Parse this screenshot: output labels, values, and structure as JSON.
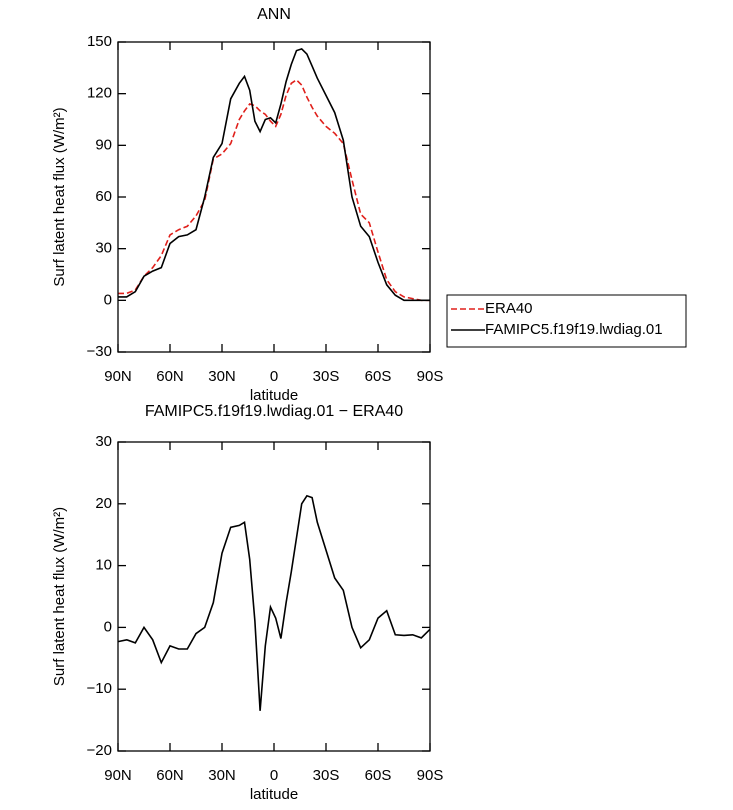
{
  "chart_data": [
    {
      "type": "line",
      "title": "ANN",
      "x_label": "latitude",
      "y_label": "Surf latent heat flux (W/m²)",
      "x": [
        90,
        85,
        80,
        75,
        70,
        65,
        60,
        55,
        50,
        45,
        40,
        35,
        30,
        25,
        20,
        17,
        14,
        11,
        8,
        5,
        2,
        -1,
        -4,
        -7,
        -10,
        -13,
        -16,
        -19,
        -22,
        -25,
        -30,
        -35,
        -40,
        -45,
        -50,
        -55,
        -60,
        -65,
        -70,
        -75,
        -80,
        -85,
        -90
      ],
      "series": [
        {
          "name": "ERA40",
          "color": "#e0201b",
          "line_style": "dashed",
          "values": [
            4,
            4,
            6,
            14,
            19,
            26,
            38,
            41,
            43,
            49,
            58,
            82,
            85,
            91,
            105,
            110,
            114,
            113,
            110,
            108,
            104,
            101,
            108,
            119,
            126,
            128,
            125,
            118,
            112,
            107,
            101,
            97,
            91,
            70,
            50,
            45,
            28,
            12,
            5,
            2,
            1,
            0,
            0
          ]
        },
        {
          "name": "FAMIPC5.f19f19.lwdiag.01",
          "color": "#000000",
          "line_style": "solid",
          "values": [
            2,
            2,
            5,
            14,
            17,
            19,
            33,
            37,
            38,
            41,
            60,
            83,
            91,
            117,
            126,
            130,
            122,
            104,
            98,
            105,
            106,
            103,
            114,
            127,
            137,
            145,
            146,
            143,
            136,
            129,
            119,
            109,
            93,
            60,
            43,
            37,
            22,
            9,
            3,
            0,
            0,
            0,
            0
          ]
        }
      ],
      "xlim": [
        90,
        -90
      ],
      "xticks": [
        {
          "value": 90,
          "label": "90N"
        },
        {
          "value": 60,
          "label": "60N"
        },
        {
          "value": 30,
          "label": "30N"
        },
        0,
        {
          "value": -30,
          "label": "30S"
        },
        {
          "value": -60,
          "label": "60S"
        },
        {
          "value": -90,
          "label": "90S"
        }
      ],
      "ylim": [
        -30,
        150
      ],
      "yticks": [
        {
          "value": -30,
          "label": "−30"
        },
        0,
        30,
        60,
        90,
        120,
        150
      ],
      "legend": "right"
    },
    {
      "type": "line",
      "title": "FAMIPC5.f19f19.lwdiag.01 − ERA40",
      "x_label": "latitude",
      "y_label": "Surf latent heat flux (W/m²)",
      "x": [
        90,
        85,
        80,
        75,
        70,
        65,
        60,
        55,
        50,
        45,
        40,
        35,
        30,
        25,
        20,
        17,
        14,
        11,
        8,
        5,
        2,
        -1,
        -4,
        -7,
        -10,
        -13,
        -16,
        -19,
        -22,
        -25,
        -30,
        -35,
        -40,
        -45,
        -50,
        -55,
        -60,
        -65,
        -70,
        -75,
        -80,
        -85,
        -90
      ],
      "series": [
        {
          "color": "#000000",
          "line_style": "solid",
          "values": [
            -2.3,
            -2,
            -2.5,
            0,
            -2,
            -5.7,
            -3,
            -3.5,
            -3.5,
            -1,
            0,
            4,
            12,
            16.2,
            16.5,
            17,
            11,
            1,
            -13.5,
            -3,
            3.3,
            1.5,
            -1.8,
            4,
            9,
            14.5,
            20,
            21.3,
            21,
            17,
            12.5,
            8,
            6,
            0,
            -3.3,
            -2,
            1.5,
            2.7,
            -1.2,
            -1.3,
            -1.2,
            -1.7,
            -0.3
          ]
        }
      ],
      "xlim": [
        90,
        -90
      ],
      "xticks": [
        {
          "value": 90,
          "label": "90N"
        },
        {
          "value": 60,
          "label": "60N"
        },
        {
          "value": 30,
          "label": "30N"
        },
        0,
        {
          "value": -30,
          "label": "30S"
        },
        {
          "value": -60,
          "label": "60S"
        },
        {
          "value": -90,
          "label": "90S"
        }
      ],
      "ylim": [
        -20,
        30
      ],
      "yticks": [
        {
          "value": -20,
          "label": "−20"
        },
        {
          "value": -10,
          "label": "−10"
        },
        0,
        10,
        20,
        30
      ]
    }
  ]
}
